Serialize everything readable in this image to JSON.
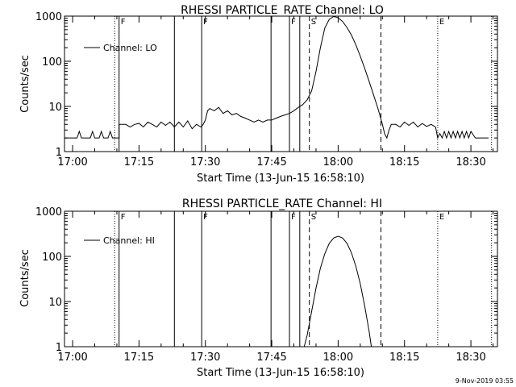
{
  "footer": {
    "timestamp": "9-Nov-2019 03:55"
  },
  "chart_data": [
    {
      "type": "line",
      "title": "RHESSI PARTICLE_RATE Channel: LO",
      "xlabel": "Start Time (13-Jun-15 16:58:10)",
      "ylabel": "Counts/sec",
      "y_scale": "log",
      "ylim": [
        1,
        1000
      ],
      "xlim": [
        "16:58:10",
        "18:36:00"
      ],
      "x_ticks": [
        "17:00",
        "17:15",
        "17:30",
        "17:45",
        "18:00",
        "18:15",
        "18:30"
      ],
      "y_ticks": [
        "1",
        "10",
        "100",
        "1000"
      ],
      "legend": {
        "position": "top-left",
        "entries": [
          "Channel: LO"
        ]
      },
      "markers": [
        {
          "time": "17:09:30",
          "style": "dotted",
          "label": ""
        },
        {
          "time": "17:10:30",
          "style": "solid",
          "label": "F"
        },
        {
          "time": "17:23:00",
          "style": "solid",
          "label": ""
        },
        {
          "time": "17:29:10",
          "style": "solid",
          "label": "F"
        },
        {
          "time": "17:44:50",
          "style": "solid",
          "label": ""
        },
        {
          "time": "17:49:00",
          "style": "solid",
          "label": "F"
        },
        {
          "time": "17:51:20",
          "style": "solid",
          "label": ""
        },
        {
          "time": "17:53:30",
          "style": "dashed",
          "label": "S"
        },
        {
          "time": "18:09:40",
          "style": "dashed",
          "label": ""
        },
        {
          "time": "18:22:30",
          "style": "dotted",
          "label": "E"
        },
        {
          "time": "18:34:40",
          "style": "dotted",
          "label": ""
        }
      ],
      "series": [
        {
          "name": "Channel: LO",
          "points": [
            [
              "16:58:10",
              2
            ],
            [
              "17:00:00",
              2
            ],
            [
              "17:01:00",
              2
            ],
            [
              "17:01:30",
              2.8
            ],
            [
              "17:02:00",
              2
            ],
            [
              "17:03:00",
              2
            ],
            [
              "17:04:00",
              2
            ],
            [
              "17:04:30",
              2.8
            ],
            [
              "17:05:00",
              2
            ],
            [
              "17:06:00",
              2
            ],
            [
              "17:06:30",
              2.8
            ],
            [
              "17:07:00",
              2
            ],
            [
              "17:08:00",
              2
            ],
            [
              "17:08:30",
              2.8
            ],
            [
              "17:09:00",
              2
            ],
            [
              "17:09:30",
              2
            ],
            [
              "17:10:30",
              2
            ],
            [
              "17:10:30",
              4
            ],
            [
              "17:12:00",
              4
            ],
            [
              "17:13:00",
              3.5
            ],
            [
              "17:14:00",
              4
            ],
            [
              "17:15:00",
              4.2
            ],
            [
              "17:16:00",
              3.5
            ],
            [
              "17:17:00",
              4.5
            ],
            [
              "17:18:00",
              4
            ],
            [
              "17:19:00",
              3.5
            ],
            [
              "17:20:00",
              4.5
            ],
            [
              "17:21:00",
              3.8
            ],
            [
              "17:22:00",
              4.5
            ],
            [
              "17:23:00",
              3.5
            ],
            [
              "17:24:00",
              4.5
            ],
            [
              "17:25:00",
              3.5
            ],
            [
              "17:26:00",
              4.8
            ],
            [
              "17:27:00",
              3.2
            ],
            [
              "17:28:00",
              4
            ],
            [
              "17:29:00",
              3.5
            ],
            [
              "17:29:30",
              4
            ],
            [
              "17:30:00",
              5
            ],
            [
              "17:30:30",
              8
            ],
            [
              "17:31:00",
              9
            ],
            [
              "17:32:00",
              8
            ],
            [
              "17:33:00",
              9.5
            ],
            [
              "17:34:00",
              7
            ],
            [
              "17:35:00",
              8
            ],
            [
              "17:36:00",
              6.5
            ],
            [
              "17:37:00",
              7
            ],
            [
              "17:38:00",
              6
            ],
            [
              "17:39:00",
              5.5
            ],
            [
              "17:40:00",
              5
            ],
            [
              "17:41:00",
              4.5
            ],
            [
              "17:42:00",
              5
            ],
            [
              "17:43:00",
              4.5
            ],
            [
              "17:44:00",
              5
            ],
            [
              "17:45:00",
              5
            ],
            [
              "17:46:00",
              5.5
            ],
            [
              "17:47:00",
              6
            ],
            [
              "17:48:00",
              6.5
            ],
            [
              "17:49:00",
              7
            ],
            [
              "17:50:00",
              8
            ],
            [
              "17:51:00",
              9.5
            ],
            [
              "17:52:00",
              11
            ],
            [
              "17:53:00",
              14
            ],
            [
              "17:54:00",
              22
            ],
            [
              "17:55:00",
              60
            ],
            [
              "17:56:00",
              200
            ],
            [
              "17:57:00",
              550
            ],
            [
              "17:58:00",
              850
            ],
            [
              "17:59:00",
              980
            ],
            [
              "18:00:00",
              930
            ],
            [
              "18:01:00",
              760
            ],
            [
              "18:02:00",
              560
            ],
            [
              "18:03:00",
              380
            ],
            [
              "18:04:00",
              230
            ],
            [
              "18:05:00",
              130
            ],
            [
              "18:06:00",
              70
            ],
            [
              "18:07:00",
              36
            ],
            [
              "18:08:00",
              18
            ],
            [
              "18:09:00",
              9
            ],
            [
              "18:10:00",
              4
            ],
            [
              "18:10:30",
              2.5
            ],
            [
              "18:11:00",
              2
            ],
            [
              "18:11:30",
              3
            ],
            [
              "18:12:00",
              4
            ],
            [
              "18:13:00",
              4
            ],
            [
              "18:14:00",
              3.5
            ],
            [
              "18:15:00",
              4.5
            ],
            [
              "18:16:00",
              3.8
            ],
            [
              "18:17:00",
              4.5
            ],
            [
              "18:18:00",
              3.5
            ],
            [
              "18:19:00",
              4.2
            ],
            [
              "18:20:00",
              3.6
            ],
            [
              "18:21:00",
              4
            ],
            [
              "18:22:00",
              3.5
            ],
            [
              "18:22:30",
              2
            ],
            [
              "18:23:00",
              2.5
            ],
            [
              "18:23:30",
              2
            ],
            [
              "18:24:00",
              2.8
            ],
            [
              "18:24:30",
              2
            ],
            [
              "18:25:00",
              2.8
            ],
            [
              "18:25:30",
              2
            ],
            [
              "18:26:00",
              2.8
            ],
            [
              "18:26:30",
              2
            ],
            [
              "18:27:00",
              2.8
            ],
            [
              "18:27:30",
              2
            ],
            [
              "18:28:00",
              2.8
            ],
            [
              "18:28:30",
              2
            ],
            [
              "18:29:00",
              2.8
            ],
            [
              "18:29:30",
              2
            ],
            [
              "18:30:00",
              2.8
            ],
            [
              "18:31:00",
              2
            ],
            [
              "18:32:00",
              2
            ],
            [
              "18:33:00",
              2
            ],
            [
              "18:34:00",
              2
            ]
          ]
        }
      ]
    },
    {
      "type": "line",
      "title": "RHESSI PARTICLE_RATE Channel: HI",
      "xlabel": "Start Time (13-Jun-15 16:58:10)",
      "ylabel": "Counts/sec",
      "y_scale": "log",
      "ylim": [
        1,
        1000
      ],
      "xlim": [
        "16:58:10",
        "18:36:00"
      ],
      "x_ticks": [
        "17:00",
        "17:15",
        "17:30",
        "17:45",
        "18:00",
        "18:15",
        "18:30"
      ],
      "y_ticks": [
        "1",
        "10",
        "100",
        "1000"
      ],
      "legend": {
        "position": "top-left",
        "entries": [
          "Channel: HI"
        ]
      },
      "markers": [
        {
          "time": "17:09:30",
          "style": "dotted",
          "label": ""
        },
        {
          "time": "17:10:30",
          "style": "solid",
          "label": "F"
        },
        {
          "time": "17:23:00",
          "style": "solid",
          "label": ""
        },
        {
          "time": "17:29:10",
          "style": "solid",
          "label": "F"
        },
        {
          "time": "17:44:50",
          "style": "solid",
          "label": ""
        },
        {
          "time": "17:49:00",
          "style": "solid",
          "label": "F"
        },
        {
          "time": "17:51:20",
          "style": "solid",
          "label": ""
        },
        {
          "time": "17:53:30",
          "style": "dashed",
          "label": "S"
        },
        {
          "time": "18:09:40",
          "style": "dashed",
          "label": ""
        },
        {
          "time": "18:22:30",
          "style": "dotted",
          "label": "E"
        },
        {
          "time": "18:34:40",
          "style": "dotted",
          "label": ""
        }
      ],
      "series": [
        {
          "name": "Channel: HI",
          "points": [
            [
              "17:52:20",
              1
            ],
            [
              "17:53:00",
              1.8
            ],
            [
              "17:54:00",
              6
            ],
            [
              "17:55:00",
              20
            ],
            [
              "17:56:00",
              55
            ],
            [
              "17:57:00",
              115
            ],
            [
              "17:58:00",
              195
            ],
            [
              "17:59:00",
              255
            ],
            [
              "18:00:00",
              280
            ],
            [
              "18:01:00",
              255
            ],
            [
              "18:02:00",
              195
            ],
            [
              "18:03:00",
              120
            ],
            [
              "18:04:00",
              60
            ],
            [
              "18:05:00",
              25
            ],
            [
              "18:06:00",
              8
            ],
            [
              "18:07:00",
              2.2
            ],
            [
              "18:07:30",
              1
            ]
          ]
        }
      ]
    }
  ]
}
